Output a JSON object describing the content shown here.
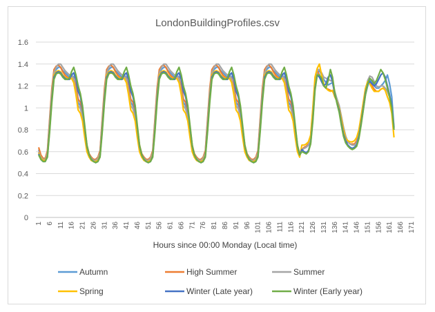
{
  "chart_data": {
    "type": "line",
    "title": "LondonBuildingProfiles.csv",
    "xlabel": "Hours since 00:00 Monday (Local time)",
    "ylabel": "",
    "ylim": [
      0,
      1.6
    ],
    "yticks": [
      "0",
      "0.2",
      "0.4",
      "0.6",
      "0.8",
      "1",
      "1.2",
      "1.4",
      "1.6"
    ],
    "xticks": [
      "1",
      "6",
      "11",
      "16",
      "21",
      "26",
      "31",
      "36",
      "41",
      "46",
      "51",
      "56",
      "61",
      "66",
      "71",
      "76",
      "81",
      "86",
      "91",
      "96",
      "101",
      "106",
      "111",
      "116",
      "121",
      "126",
      "131",
      "136",
      "141",
      "146",
      "151",
      "156",
      "161",
      "166",
      "171"
    ],
    "x_range": [
      1,
      171
    ],
    "grid": "horizontal",
    "legend_position": "bottom",
    "series": [
      {
        "name": "Autumn",
        "color": "#5b9bd5",
        "values": [
          0.62,
          0.56,
          0.53,
          0.53,
          0.6,
          0.88,
          1.15,
          1.32,
          1.35,
          1.37,
          1.37,
          1.34,
          1.32,
          1.3,
          1.28,
          1.3,
          1.28,
          1.18,
          1.05,
          1.02,
          0.95,
          0.8,
          0.65,
          0.58,
          0.55,
          0.53,
          0.52,
          0.54,
          0.6,
          0.88,
          1.15,
          1.32,
          1.35,
          1.37,
          1.37,
          1.34,
          1.32,
          1.3,
          1.28,
          1.3,
          1.28,
          1.18,
          1.05,
          1.02,
          0.95,
          0.8,
          0.65,
          0.58,
          0.55,
          0.53,
          0.52,
          0.54,
          0.6,
          0.88,
          1.15,
          1.32,
          1.35,
          1.37,
          1.37,
          1.34,
          1.32,
          1.3,
          1.28,
          1.3,
          1.28,
          1.18,
          1.05,
          1.02,
          0.95,
          0.8,
          0.65,
          0.58,
          0.55,
          0.53,
          0.52,
          0.54,
          0.6,
          0.88,
          1.15,
          1.32,
          1.35,
          1.37,
          1.37,
          1.34,
          1.32,
          1.3,
          1.28,
          1.3,
          1.28,
          1.18,
          1.05,
          1.02,
          0.95,
          0.8,
          0.65,
          0.58,
          0.55,
          0.53,
          0.52,
          0.54,
          0.6,
          0.88,
          1.15,
          1.32,
          1.35,
          1.37,
          1.37,
          1.34,
          1.32,
          1.3,
          1.28,
          1.3,
          1.28,
          1.18,
          1.05,
          1.02,
          0.95,
          0.8,
          0.65,
          0.58,
          0.62,
          0.63,
          0.64,
          0.66,
          0.72,
          0.95,
          1.22,
          1.32,
          1.34,
          1.3,
          1.26,
          1.23,
          1.21,
          1.22,
          1.23,
          1.14,
          1.08,
          1.02,
          0.92,
          0.82,
          0.74,
          0.69,
          0.67,
          0.66,
          0.66,
          0.68,
          0.75,
          0.85,
          0.98,
          1.12,
          1.2,
          1.25,
          1.24,
          1.2,
          1.18,
          1.18,
          1.2,
          1.22,
          1.25,
          1.3,
          1.22,
          1.1,
          0.82
        ]
      },
      {
        "name": "High Summer",
        "color": "#ed7d31",
        "values": [
          0.64,
          0.57,
          0.54,
          0.54,
          0.61,
          0.9,
          1.18,
          1.35,
          1.38,
          1.39,
          1.37,
          1.33,
          1.3,
          1.28,
          1.27,
          1.29,
          1.27,
          1.2,
          1.08,
          1.05,
          0.98,
          0.82,
          0.66,
          0.58,
          0.55,
          0.53,
          0.53,
          0.55,
          0.61,
          0.9,
          1.18,
          1.35,
          1.38,
          1.39,
          1.37,
          1.33,
          1.3,
          1.28,
          1.27,
          1.29,
          1.27,
          1.2,
          1.08,
          1.05,
          0.98,
          0.82,
          0.66,
          0.58,
          0.55,
          0.53,
          0.53,
          0.55,
          0.61,
          0.9,
          1.18,
          1.35,
          1.38,
          1.39,
          1.37,
          1.33,
          1.3,
          1.28,
          1.27,
          1.29,
          1.27,
          1.2,
          1.08,
          1.05,
          0.98,
          0.82,
          0.66,
          0.58,
          0.55,
          0.53,
          0.53,
          0.55,
          0.61,
          0.9,
          1.18,
          1.35,
          1.38,
          1.39,
          1.37,
          1.33,
          1.3,
          1.28,
          1.27,
          1.29,
          1.27,
          1.2,
          1.08,
          1.05,
          0.98,
          0.82,
          0.66,
          0.58,
          0.55,
          0.53,
          0.53,
          0.55,
          0.61,
          0.9,
          1.18,
          1.35,
          1.38,
          1.39,
          1.37,
          1.33,
          1.3,
          1.28,
          1.27,
          1.29,
          1.27,
          1.2,
          1.08,
          1.05,
          0.98,
          0.82,
          0.66,
          0.58,
          0.62,
          0.64,
          0.65,
          0.67,
          0.74,
          0.98,
          1.25,
          1.34,
          1.3,
          1.24,
          1.2,
          1.18,
          1.17,
          1.16,
          1.15,
          1.12,
          1.08,
          1.0,
          0.9,
          0.8,
          0.73,
          0.69,
          0.67,
          0.67,
          0.67,
          0.7,
          0.77,
          0.88,
          1.0,
          1.14,
          1.22,
          1.24,
          1.2,
          1.17,
          1.15,
          1.15,
          1.17,
          1.18,
          1.18,
          1.15,
          1.1,
          1.0,
          0.8
        ]
      },
      {
        "name": "Summer",
        "color": "#a5a5a5",
        "values": [
          0.6,
          0.55,
          0.53,
          0.53,
          0.59,
          0.87,
          1.14,
          1.32,
          1.37,
          1.4,
          1.4,
          1.37,
          1.34,
          1.32,
          1.3,
          1.3,
          1.26,
          1.15,
          1.02,
          0.99,
          0.92,
          0.78,
          0.63,
          0.57,
          0.54,
          0.52,
          0.52,
          0.54,
          0.59,
          0.87,
          1.14,
          1.32,
          1.37,
          1.4,
          1.4,
          1.37,
          1.34,
          1.32,
          1.3,
          1.3,
          1.26,
          1.15,
          1.02,
          0.99,
          0.92,
          0.78,
          0.63,
          0.57,
          0.54,
          0.52,
          0.52,
          0.54,
          0.59,
          0.87,
          1.14,
          1.32,
          1.37,
          1.4,
          1.4,
          1.37,
          1.34,
          1.32,
          1.3,
          1.3,
          1.26,
          1.15,
          1.02,
          0.99,
          0.92,
          0.78,
          0.63,
          0.57,
          0.54,
          0.52,
          0.52,
          0.54,
          0.59,
          0.87,
          1.14,
          1.32,
          1.37,
          1.4,
          1.4,
          1.37,
          1.34,
          1.32,
          1.3,
          1.3,
          1.26,
          1.15,
          1.02,
          0.99,
          0.92,
          0.78,
          0.63,
          0.57,
          0.54,
          0.52,
          0.52,
          0.54,
          0.59,
          0.87,
          1.14,
          1.32,
          1.37,
          1.4,
          1.4,
          1.37,
          1.34,
          1.32,
          1.3,
          1.3,
          1.26,
          1.15,
          1.02,
          0.99,
          0.92,
          0.78,
          0.63,
          0.57,
          0.62,
          0.63,
          0.64,
          0.66,
          0.72,
          0.95,
          1.22,
          1.35,
          1.35,
          1.32,
          1.28,
          1.27,
          1.26,
          1.25,
          1.24,
          1.15,
          1.08,
          1.02,
          0.92,
          0.82,
          0.74,
          0.69,
          0.67,
          0.66,
          0.66,
          0.68,
          0.75,
          0.86,
          1.0,
          1.15,
          1.25,
          1.29,
          1.28,
          1.24,
          1.2,
          1.19,
          1.2,
          1.2,
          1.18,
          1.15,
          1.1,
          1.0,
          0.8
        ]
      },
      {
        "name": "Spring",
        "color": "#ffc000",
        "values": [
          0.59,
          0.54,
          0.52,
          0.52,
          0.57,
          0.82,
          1.1,
          1.3,
          1.33,
          1.34,
          1.33,
          1.3,
          1.28,
          1.27,
          1.26,
          1.27,
          1.23,
          1.12,
          0.98,
          0.95,
          0.88,
          0.73,
          0.6,
          0.55,
          0.52,
          0.51,
          0.51,
          0.52,
          0.57,
          0.82,
          1.1,
          1.3,
          1.33,
          1.34,
          1.33,
          1.3,
          1.28,
          1.27,
          1.26,
          1.27,
          1.23,
          1.12,
          0.98,
          0.95,
          0.88,
          0.73,
          0.6,
          0.55,
          0.52,
          0.51,
          0.51,
          0.52,
          0.57,
          0.82,
          1.1,
          1.3,
          1.33,
          1.34,
          1.33,
          1.3,
          1.28,
          1.27,
          1.26,
          1.27,
          1.23,
          1.12,
          0.98,
          0.95,
          0.88,
          0.73,
          0.6,
          0.55,
          0.52,
          0.51,
          0.51,
          0.52,
          0.57,
          0.82,
          1.1,
          1.3,
          1.33,
          1.34,
          1.33,
          1.3,
          1.28,
          1.27,
          1.26,
          1.27,
          1.23,
          1.12,
          0.98,
          0.95,
          0.88,
          0.73,
          0.6,
          0.55,
          0.52,
          0.51,
          0.51,
          0.52,
          0.57,
          0.82,
          1.1,
          1.3,
          1.33,
          1.34,
          1.33,
          1.3,
          1.28,
          1.27,
          1.26,
          1.27,
          1.23,
          1.12,
          0.98,
          0.95,
          0.88,
          0.73,
          0.6,
          0.55,
          0.66,
          0.66,
          0.67,
          0.69,
          0.75,
          1.0,
          1.28,
          1.36,
          1.4,
          1.3,
          1.22,
          1.18,
          1.16,
          1.15,
          1.16,
          1.1,
          1.06,
          1.0,
          0.9,
          0.8,
          0.72,
          0.7,
          0.69,
          0.69,
          0.7,
          0.73,
          0.8,
          0.92,
          1.05,
          1.18,
          1.24,
          1.22,
          1.18,
          1.15,
          1.15,
          1.15,
          1.17,
          1.18,
          1.16,
          1.1,
          1.05,
          0.95,
          0.73
        ]
      },
      {
        "name": "Winter (Late year)",
        "color": "#4472c4",
        "values": [
          0.58,
          0.53,
          0.51,
          0.51,
          0.56,
          0.8,
          1.08,
          1.28,
          1.32,
          1.33,
          1.32,
          1.29,
          1.27,
          1.26,
          1.26,
          1.3,
          1.32,
          1.26,
          1.15,
          1.1,
          1.0,
          0.82,
          0.65,
          0.57,
          0.53,
          0.51,
          0.5,
          0.51,
          0.56,
          0.8,
          1.08,
          1.28,
          1.32,
          1.33,
          1.32,
          1.29,
          1.27,
          1.26,
          1.26,
          1.3,
          1.32,
          1.26,
          1.15,
          1.1,
          1.0,
          0.82,
          0.65,
          0.57,
          0.53,
          0.51,
          0.5,
          0.51,
          0.56,
          0.8,
          1.08,
          1.28,
          1.32,
          1.33,
          1.32,
          1.29,
          1.27,
          1.26,
          1.26,
          1.3,
          1.32,
          1.26,
          1.15,
          1.1,
          1.0,
          0.82,
          0.65,
          0.57,
          0.53,
          0.51,
          0.5,
          0.51,
          0.56,
          0.8,
          1.08,
          1.28,
          1.32,
          1.33,
          1.32,
          1.29,
          1.27,
          1.26,
          1.26,
          1.3,
          1.32,
          1.26,
          1.15,
          1.1,
          1.0,
          0.82,
          0.65,
          0.57,
          0.53,
          0.51,
          0.5,
          0.51,
          0.56,
          0.8,
          1.08,
          1.28,
          1.32,
          1.33,
          1.32,
          1.29,
          1.27,
          1.26,
          1.26,
          1.3,
          1.32,
          1.26,
          1.15,
          1.1,
          1.0,
          0.82,
          0.65,
          0.57,
          0.62,
          0.6,
          0.59,
          0.61,
          0.68,
          0.9,
          1.18,
          1.3,
          1.28,
          1.24,
          1.2,
          1.22,
          1.28,
          1.3,
          1.24,
          1.12,
          1.05,
          0.98,
          0.86,
          0.76,
          0.7,
          0.66,
          0.64,
          0.63,
          0.64,
          0.66,
          0.74,
          0.86,
          1.0,
          1.14,
          1.22,
          1.24,
          1.22,
          1.2,
          1.22,
          1.26,
          1.3,
          1.32,
          1.28,
          1.2,
          1.12,
          1.02,
          0.82
        ]
      },
      {
        "name": "Winter (Early year)",
        "color": "#70ad47",
        "values": [
          0.57,
          0.53,
          0.51,
          0.51,
          0.55,
          0.78,
          1.05,
          1.26,
          1.31,
          1.32,
          1.31,
          1.28,
          1.26,
          1.26,
          1.27,
          1.33,
          1.37,
          1.3,
          1.2,
          1.13,
          1.02,
          0.84,
          0.66,
          0.57,
          0.53,
          0.51,
          0.5,
          0.51,
          0.55,
          0.78,
          1.05,
          1.26,
          1.31,
          1.32,
          1.31,
          1.28,
          1.26,
          1.26,
          1.27,
          1.33,
          1.37,
          1.3,
          1.2,
          1.13,
          1.02,
          0.84,
          0.66,
          0.57,
          0.53,
          0.51,
          0.5,
          0.51,
          0.55,
          0.78,
          1.05,
          1.26,
          1.31,
          1.32,
          1.31,
          1.28,
          1.26,
          1.26,
          1.27,
          1.33,
          1.37,
          1.3,
          1.2,
          1.13,
          1.02,
          0.84,
          0.66,
          0.57,
          0.53,
          0.51,
          0.5,
          0.51,
          0.55,
          0.78,
          1.05,
          1.26,
          1.31,
          1.32,
          1.31,
          1.28,
          1.26,
          1.26,
          1.27,
          1.33,
          1.37,
          1.3,
          1.2,
          1.13,
          1.02,
          0.84,
          0.66,
          0.57,
          0.53,
          0.51,
          0.5,
          0.51,
          0.55,
          0.78,
          1.05,
          1.26,
          1.31,
          1.32,
          1.31,
          1.28,
          1.26,
          1.26,
          1.27,
          1.33,
          1.37,
          1.3,
          1.2,
          1.13,
          1.02,
          0.84,
          0.66,
          0.57,
          0.6,
          0.59,
          0.58,
          0.6,
          0.67,
          0.88,
          1.16,
          1.3,
          1.3,
          1.27,
          1.2,
          1.18,
          1.25,
          1.35,
          1.28,
          1.14,
          1.04,
          0.96,
          0.84,
          0.74,
          0.68,
          0.65,
          0.63,
          0.62,
          0.63,
          0.65,
          0.72,
          0.84,
          0.98,
          1.12,
          1.22,
          1.27,
          1.25,
          1.22,
          1.25,
          1.3,
          1.35,
          1.32,
          1.26,
          1.18,
          1.1,
          1.0,
          0.8
        ]
      }
    ]
  }
}
